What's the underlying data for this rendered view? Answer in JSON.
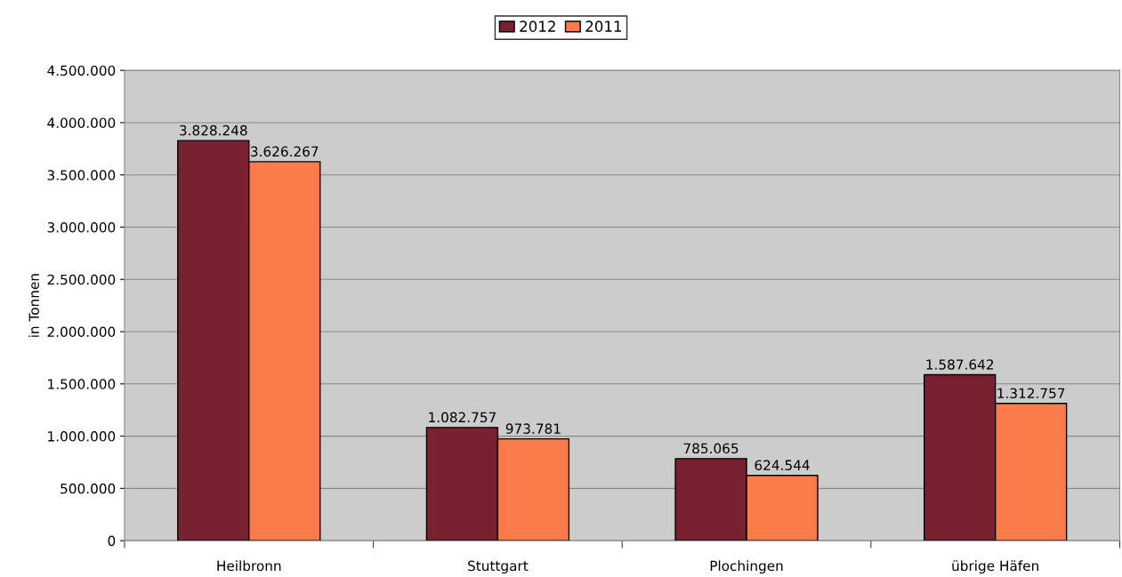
{
  "chart_data": {
    "type": "bar",
    "ylabel": "in Tonnen",
    "categories": [
      "Heilbronn",
      "Stuttgart",
      "Plochingen",
      "übrige Häfen"
    ],
    "series": [
      {
        "name": "2012",
        "color": "#782231",
        "values": [
          3828248,
          1082757,
          785065,
          1587642
        ],
        "value_labels": [
          "3.828.248",
          "1.082.757",
          "785.065",
          "1.587.642"
        ]
      },
      {
        "name": "2011",
        "color": "#f97b4a",
        "values": [
          3626267,
          973781,
          624544,
          1312757
        ],
        "value_labels": [
          "3.626.267",
          "973.781",
          "624.544",
          "1.312.757"
        ]
      }
    ],
    "ylim": [
      0,
      4500000
    ],
    "yticks": [
      0,
      {
        "value": 500000,
        "label": "500.000"
      },
      {
        "value": 1000000,
        "label": "1.000.000"
      },
      {
        "value": 1500000,
        "label": "1.500.000"
      },
      {
        "value": 2000000,
        "label": "2.000.000"
      },
      {
        "value": 2500000,
        "label": "2.500.000"
      },
      {
        "value": 3000000,
        "label": "3.000.000"
      },
      {
        "value": 3500000,
        "label": "3.500.000"
      },
      {
        "value": 4000000,
        "label": "4.000.000"
      },
      {
        "value": 4500000,
        "label": "4.500.000"
      }
    ],
    "grid": "y",
    "legend": "top"
  }
}
